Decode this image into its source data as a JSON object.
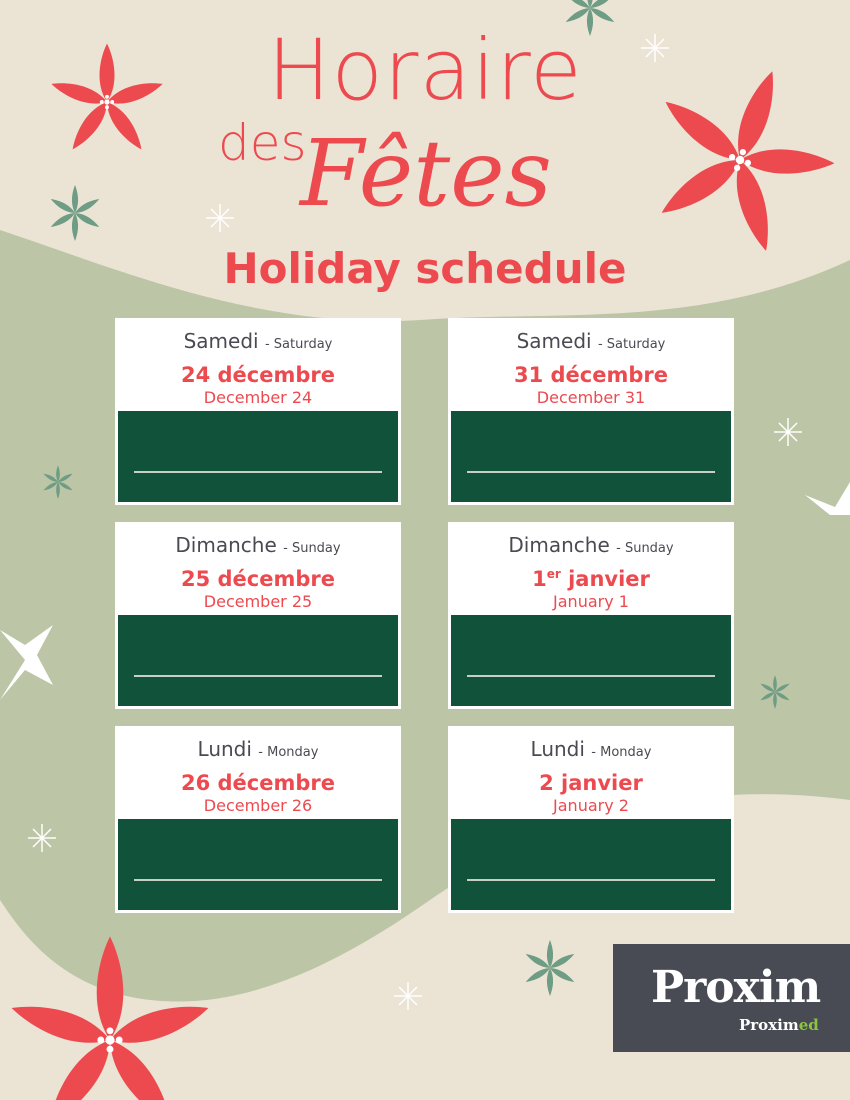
{
  "colors": {
    "accent_red": "#ec4a4f",
    "dark_green": "#10533a",
    "sage": "#bcc5a5",
    "beige": "#ebe4d5",
    "logo_bg": "#484b54",
    "logo_green": "#8bc43f"
  },
  "title": {
    "line1": "Horaire",
    "line2_small": "des",
    "line2_script": "Fêtes",
    "english": "Holiday schedule"
  },
  "cards": [
    {
      "day_fr": "Samedi",
      "day_en": "- Saturday",
      "date_fr": "24 décembre",
      "date_sup": "",
      "date_fr_rest": "",
      "date_en": "December 24"
    },
    {
      "day_fr": "Samedi",
      "day_en": "- Saturday",
      "date_fr": "31 décembre",
      "date_sup": "",
      "date_fr_rest": "",
      "date_en": "December 31"
    },
    {
      "day_fr": "Dimanche",
      "day_en": "- Sunday",
      "date_fr": "25 décembre",
      "date_sup": "",
      "date_fr_rest": "",
      "date_en": "December 25"
    },
    {
      "day_fr": "Dimanche",
      "day_en": "- Sunday",
      "date_fr": "1",
      "date_sup": "er",
      "date_fr_rest": " janvier",
      "date_en": "January 1"
    },
    {
      "day_fr": "Lundi",
      "day_en": "- Monday",
      "date_fr": "26 décembre",
      "date_sup": "",
      "date_fr_rest": "",
      "date_en": "December 26"
    },
    {
      "day_fr": "Lundi",
      "day_en": "- Monday",
      "date_fr": "2 janvier",
      "date_sup": "",
      "date_fr_rest": "",
      "date_en": "January 2"
    }
  ],
  "logo": {
    "brand": "Proxim",
    "sub_brand_a": "Prox",
    "sub_brand_b": "im",
    "sub_brand_c": "ed"
  }
}
